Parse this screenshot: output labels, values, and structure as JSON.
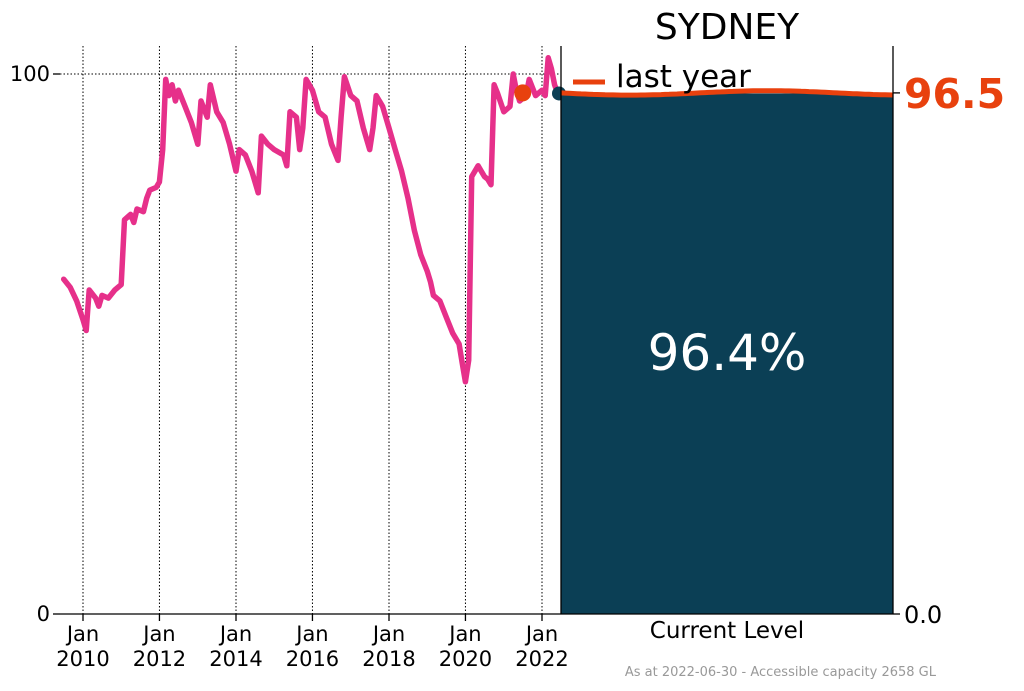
{
  "chart_data": {
    "type": "line",
    "title": "SYDNEY",
    "x_ticks": [
      {
        "date": "2010-01-01",
        "label": [
          "Jan",
          "2010"
        ]
      },
      {
        "date": "2012-01-01",
        "label": [
          "Jan",
          "2012"
        ]
      },
      {
        "date": "2014-01-01",
        "label": [
          "Jan",
          "2014"
        ]
      },
      {
        "date": "2016-01-01",
        "label": [
          "Jan",
          "2016"
        ]
      },
      {
        "date": "2018-01-01",
        "label": [
          "Jan",
          "2018"
        ]
      },
      {
        "date": "2020-01-01",
        "label": [
          "Jan",
          "2020"
        ]
      },
      {
        "date": "2022-01-01",
        "label": [
          "Jan",
          "2022"
        ]
      }
    ],
    "y_ticks": [
      "0",
      "100"
    ],
    "ylim": [
      0,
      105
    ],
    "xlim": [
      "2009-06-01",
      "2022-07-01"
    ],
    "grid": "vertical-dotted",
    "series": [
      {
        "color": "#e6308a",
        "points": [
          [
            "2009-07-01",
            62
          ],
          [
            "2009-09-01",
            60.5
          ],
          [
            "2009-11-01",
            58
          ],
          [
            "2010-01-01",
            54.5
          ],
          [
            "2010-02-01",
            52.5
          ],
          [
            "2010-03-01",
            60
          ],
          [
            "2010-05-01",
            58.5
          ],
          [
            "2010-06-01",
            57
          ],
          [
            "2010-07-01",
            59
          ],
          [
            "2010-09-01",
            58.5
          ],
          [
            "2010-11-01",
            60
          ],
          [
            "2011-01-01",
            61
          ],
          [
            "2011-02-01",
            73
          ],
          [
            "2011-04-01",
            74
          ],
          [
            "2011-05-01",
            72.5
          ],
          [
            "2011-06-01",
            75
          ],
          [
            "2011-08-01",
            74.5
          ],
          [
            "2011-09-01",
            77
          ],
          [
            "2011-10-01",
            78.5
          ],
          [
            "2011-12-01",
            79
          ],
          [
            "2012-01-01",
            80
          ],
          [
            "2012-02-01",
            86
          ],
          [
            "2012-03-01",
            99
          ],
          [
            "2012-04-01",
            96
          ],
          [
            "2012-05-01",
            98
          ],
          [
            "2012-06-01",
            95
          ],
          [
            "2012-07-01",
            97
          ],
          [
            "2012-09-01",
            94
          ],
          [
            "2012-11-01",
            91
          ],
          [
            "2013-01-01",
            87
          ],
          [
            "2013-02-01",
            95
          ],
          [
            "2013-04-01",
            92
          ],
          [
            "2013-05-01",
            98
          ],
          [
            "2013-07-01",
            93
          ],
          [
            "2013-09-01",
            91
          ],
          [
            "2013-11-01",
            87
          ],
          [
            "2014-01-01",
            82
          ],
          [
            "2014-02-01",
            86
          ],
          [
            "2014-04-01",
            85
          ],
          [
            "2014-06-01",
            82
          ],
          [
            "2014-08-01",
            78
          ],
          [
            "2014-09-01",
            88.5
          ],
          [
            "2014-11-01",
            87
          ],
          [
            "2015-01-01",
            86
          ],
          [
            "2015-04-01",
            85
          ],
          [
            "2015-05-01",
            83
          ],
          [
            "2015-06-01",
            93
          ],
          [
            "2015-08-01",
            92
          ],
          [
            "2015-09-01",
            86
          ],
          [
            "2015-10-01",
            90
          ],
          [
            "2015-11-01",
            99
          ],
          [
            "2016-01-01",
            97
          ],
          [
            "2016-03-01",
            93
          ],
          [
            "2016-05-01",
            92
          ],
          [
            "2016-07-01",
            87
          ],
          [
            "2016-09-01",
            84
          ],
          [
            "2016-10-01",
            92
          ],
          [
            "2016-11-01",
            99.5
          ],
          [
            "2017-01-01",
            96
          ],
          [
            "2017-03-01",
            95
          ],
          [
            "2017-05-01",
            90
          ],
          [
            "2017-07-01",
            86
          ],
          [
            "2017-08-01",
            90
          ],
          [
            "2017-09-01",
            96
          ],
          [
            "2017-11-01",
            94
          ],
          [
            "2018-01-01",
            90
          ],
          [
            "2018-03-01",
            86
          ],
          [
            "2018-05-01",
            82
          ],
          [
            "2018-07-01",
            77
          ],
          [
            "2018-09-01",
            71
          ],
          [
            "2018-11-01",
            66.5
          ],
          [
            "2019-01-01",
            63.5
          ],
          [
            "2019-02-01",
            61.5
          ],
          [
            "2019-03-01",
            59
          ],
          [
            "2019-05-01",
            58
          ],
          [
            "2019-07-01",
            55
          ],
          [
            "2019-09-01",
            52
          ],
          [
            "2019-11-01",
            50
          ],
          [
            "2019-12-01",
            46.5
          ],
          [
            "2020-01-01",
            43
          ],
          [
            "2020-02-01",
            47
          ],
          [
            "2020-03-01",
            81
          ],
          [
            "2020-05-01",
            83
          ],
          [
            "2020-07-01",
            81
          ],
          [
            "2020-08-01",
            80.5
          ],
          [
            "2020-09-01",
            79.5
          ],
          [
            "2020-10-01",
            98
          ],
          [
            "2020-11-01",
            96.5
          ],
          [
            "2021-01-01",
            93
          ],
          [
            "2021-03-01",
            94
          ],
          [
            "2021-04-01",
            100
          ],
          [
            "2021-05-01",
            97
          ],
          [
            "2021-06-01",
            95
          ],
          [
            "2021-08-01",
            96
          ],
          [
            "2021-09-01",
            99
          ],
          [
            "2021-11-01",
            96
          ],
          [
            "2022-01-01",
            97
          ],
          [
            "2022-02-01",
            96
          ],
          [
            "2022-03-01",
            103
          ],
          [
            "2022-04-01",
            101
          ],
          [
            "2022-05-01",
            98
          ],
          [
            "2022-06-01",
            96.4
          ]
        ]
      }
    ],
    "markers": [
      {
        "name": "last year",
        "date": "2021-07-01",
        "value": 96.5,
        "color": "#e8410e"
      },
      {
        "name": "current",
        "date": "2022-06-30",
        "value": 96.4,
        "color": "#0b3f55"
      }
    ],
    "current_level": {
      "value": 96.4,
      "label": "96.4%",
      "category": "Current Level",
      "fill_color": "#0b3f55",
      "right_ticks": [
        "0.0",
        "96.5"
      ]
    },
    "last_year": {
      "value": 96.5,
      "legend_label": "last year",
      "color": "#e8410e"
    },
    "line_color": "#e6308a",
    "footer": "As at 2022-06-30 - Accessible capacity 2658 GL"
  }
}
